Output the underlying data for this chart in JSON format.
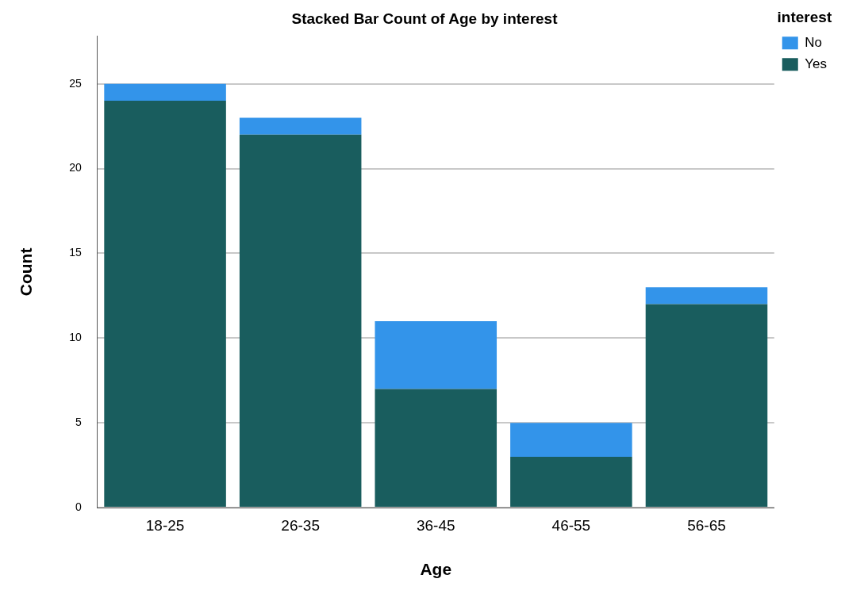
{
  "chart_data": {
    "type": "bar",
    "title": "Stacked Bar Count of Age by interest",
    "xlabel": "Age",
    "ylabel": "Count",
    "legend_title": "interest",
    "categories": [
      "18-25",
      "26-35",
      "36-45",
      "46-55",
      "56-65"
    ],
    "stacked": true,
    "series": [
      {
        "name": "Yes",
        "color": "#195d5e",
        "values": [
          24,
          22,
          7,
          3,
          12
        ]
      },
      {
        "name": "No",
        "color": "#3394ea",
        "values": [
          1,
          1,
          4,
          2,
          1
        ]
      }
    ],
    "ylim": [
      0,
      27.8
    ],
    "yticks": [
      0,
      5,
      10,
      15,
      20,
      25
    ],
    "grid": "y",
    "legend": "right"
  }
}
